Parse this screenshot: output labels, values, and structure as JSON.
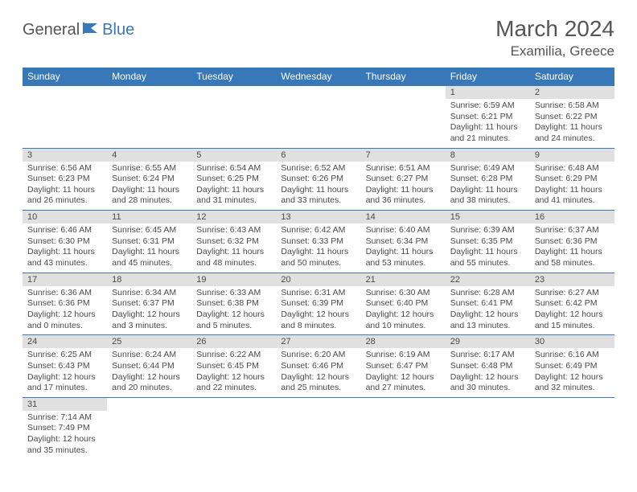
{
  "logo": {
    "part1": "General",
    "part2": "Blue"
  },
  "title": "March 2024",
  "location": "Examilia, Greece",
  "colors": {
    "header_bg": "#3878b8",
    "header_fg": "#ffffff",
    "daynum_bg": "#e0e0e0",
    "text": "#4a4a4a",
    "border": "#3878b8"
  },
  "weekdays": [
    "Sunday",
    "Monday",
    "Tuesday",
    "Wednesday",
    "Thursday",
    "Friday",
    "Saturday"
  ],
  "weeks": [
    [
      null,
      null,
      null,
      null,
      null,
      {
        "d": "1",
        "sr": "Sunrise: 6:59 AM",
        "ss": "Sunset: 6:21 PM",
        "dl": "Daylight: 11 hours and 21 minutes."
      },
      {
        "d": "2",
        "sr": "Sunrise: 6:58 AM",
        "ss": "Sunset: 6:22 PM",
        "dl": "Daylight: 11 hours and 24 minutes."
      }
    ],
    [
      {
        "d": "3",
        "sr": "Sunrise: 6:56 AM",
        "ss": "Sunset: 6:23 PM",
        "dl": "Daylight: 11 hours and 26 minutes."
      },
      {
        "d": "4",
        "sr": "Sunrise: 6:55 AM",
        "ss": "Sunset: 6:24 PM",
        "dl": "Daylight: 11 hours and 28 minutes."
      },
      {
        "d": "5",
        "sr": "Sunrise: 6:54 AM",
        "ss": "Sunset: 6:25 PM",
        "dl": "Daylight: 11 hours and 31 minutes."
      },
      {
        "d": "6",
        "sr": "Sunrise: 6:52 AM",
        "ss": "Sunset: 6:26 PM",
        "dl": "Daylight: 11 hours and 33 minutes."
      },
      {
        "d": "7",
        "sr": "Sunrise: 6:51 AM",
        "ss": "Sunset: 6:27 PM",
        "dl": "Daylight: 11 hours and 36 minutes."
      },
      {
        "d": "8",
        "sr": "Sunrise: 6:49 AM",
        "ss": "Sunset: 6:28 PM",
        "dl": "Daylight: 11 hours and 38 minutes."
      },
      {
        "d": "9",
        "sr": "Sunrise: 6:48 AM",
        "ss": "Sunset: 6:29 PM",
        "dl": "Daylight: 11 hours and 41 minutes."
      }
    ],
    [
      {
        "d": "10",
        "sr": "Sunrise: 6:46 AM",
        "ss": "Sunset: 6:30 PM",
        "dl": "Daylight: 11 hours and 43 minutes."
      },
      {
        "d": "11",
        "sr": "Sunrise: 6:45 AM",
        "ss": "Sunset: 6:31 PM",
        "dl": "Daylight: 11 hours and 45 minutes."
      },
      {
        "d": "12",
        "sr": "Sunrise: 6:43 AM",
        "ss": "Sunset: 6:32 PM",
        "dl": "Daylight: 11 hours and 48 minutes."
      },
      {
        "d": "13",
        "sr": "Sunrise: 6:42 AM",
        "ss": "Sunset: 6:33 PM",
        "dl": "Daylight: 11 hours and 50 minutes."
      },
      {
        "d": "14",
        "sr": "Sunrise: 6:40 AM",
        "ss": "Sunset: 6:34 PM",
        "dl": "Daylight: 11 hours and 53 minutes."
      },
      {
        "d": "15",
        "sr": "Sunrise: 6:39 AM",
        "ss": "Sunset: 6:35 PM",
        "dl": "Daylight: 11 hours and 55 minutes."
      },
      {
        "d": "16",
        "sr": "Sunrise: 6:37 AM",
        "ss": "Sunset: 6:36 PM",
        "dl": "Daylight: 11 hours and 58 minutes."
      }
    ],
    [
      {
        "d": "17",
        "sr": "Sunrise: 6:36 AM",
        "ss": "Sunset: 6:36 PM",
        "dl": "Daylight: 12 hours and 0 minutes."
      },
      {
        "d": "18",
        "sr": "Sunrise: 6:34 AM",
        "ss": "Sunset: 6:37 PM",
        "dl": "Daylight: 12 hours and 3 minutes."
      },
      {
        "d": "19",
        "sr": "Sunrise: 6:33 AM",
        "ss": "Sunset: 6:38 PM",
        "dl": "Daylight: 12 hours and 5 minutes."
      },
      {
        "d": "20",
        "sr": "Sunrise: 6:31 AM",
        "ss": "Sunset: 6:39 PM",
        "dl": "Daylight: 12 hours and 8 minutes."
      },
      {
        "d": "21",
        "sr": "Sunrise: 6:30 AM",
        "ss": "Sunset: 6:40 PM",
        "dl": "Daylight: 12 hours and 10 minutes."
      },
      {
        "d": "22",
        "sr": "Sunrise: 6:28 AM",
        "ss": "Sunset: 6:41 PM",
        "dl": "Daylight: 12 hours and 13 minutes."
      },
      {
        "d": "23",
        "sr": "Sunrise: 6:27 AM",
        "ss": "Sunset: 6:42 PM",
        "dl": "Daylight: 12 hours and 15 minutes."
      }
    ],
    [
      {
        "d": "24",
        "sr": "Sunrise: 6:25 AM",
        "ss": "Sunset: 6:43 PM",
        "dl": "Daylight: 12 hours and 17 minutes."
      },
      {
        "d": "25",
        "sr": "Sunrise: 6:24 AM",
        "ss": "Sunset: 6:44 PM",
        "dl": "Daylight: 12 hours and 20 minutes."
      },
      {
        "d": "26",
        "sr": "Sunrise: 6:22 AM",
        "ss": "Sunset: 6:45 PM",
        "dl": "Daylight: 12 hours and 22 minutes."
      },
      {
        "d": "27",
        "sr": "Sunrise: 6:20 AM",
        "ss": "Sunset: 6:46 PM",
        "dl": "Daylight: 12 hours and 25 minutes."
      },
      {
        "d": "28",
        "sr": "Sunrise: 6:19 AM",
        "ss": "Sunset: 6:47 PM",
        "dl": "Daylight: 12 hours and 27 minutes."
      },
      {
        "d": "29",
        "sr": "Sunrise: 6:17 AM",
        "ss": "Sunset: 6:48 PM",
        "dl": "Daylight: 12 hours and 30 minutes."
      },
      {
        "d": "30",
        "sr": "Sunrise: 6:16 AM",
        "ss": "Sunset: 6:49 PM",
        "dl": "Daylight: 12 hours and 32 minutes."
      }
    ],
    [
      {
        "d": "31",
        "sr": "Sunrise: 7:14 AM",
        "ss": "Sunset: 7:49 PM",
        "dl": "Daylight: 12 hours and 35 minutes."
      },
      null,
      null,
      null,
      null,
      null,
      null
    ]
  ]
}
